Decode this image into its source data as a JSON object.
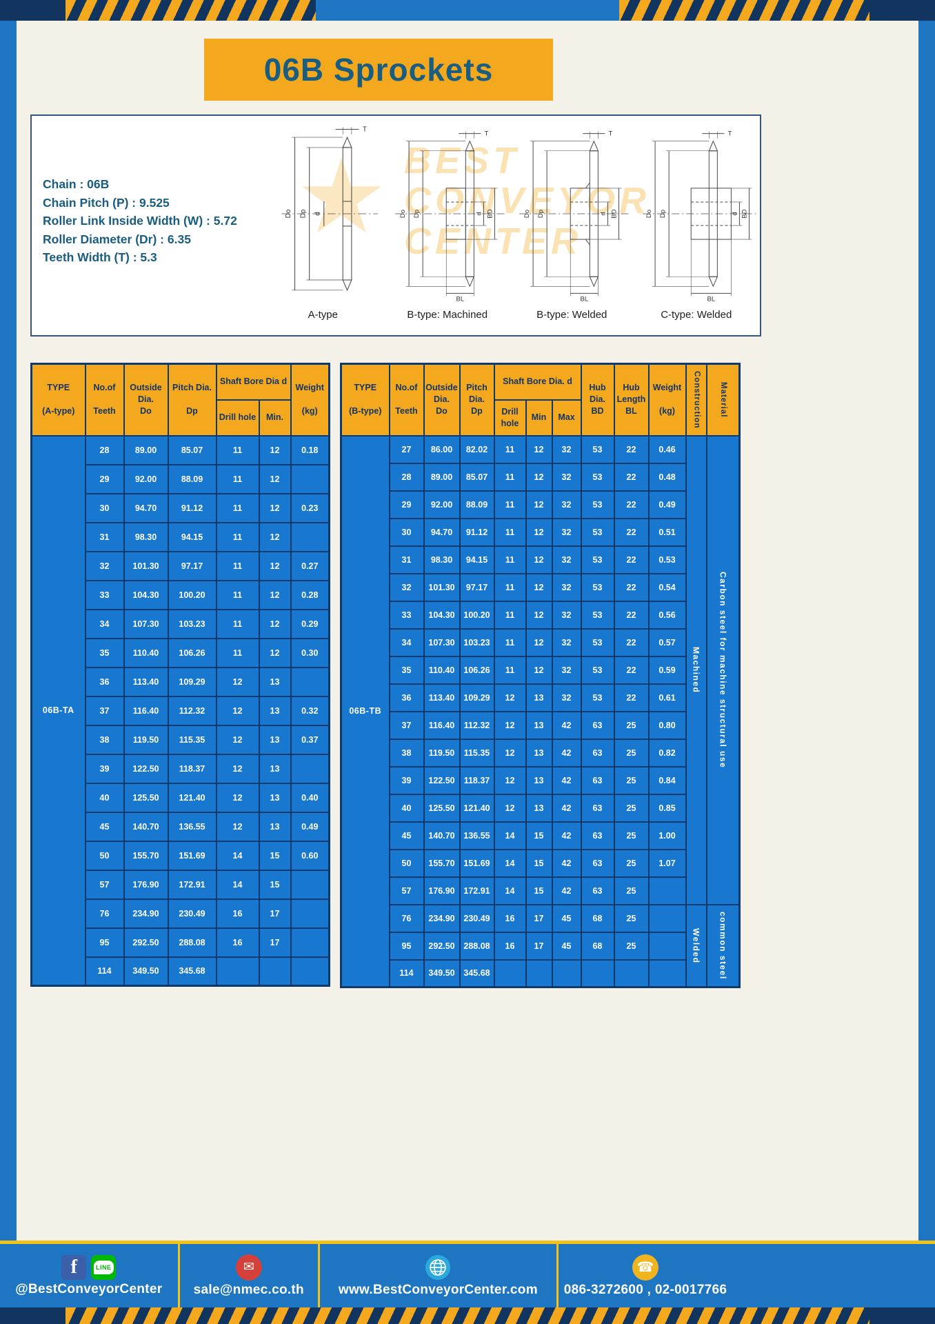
{
  "colors": {
    "blue": "#1e76c2",
    "cream": "#f4f1e9",
    "yellow": "#f3a81d",
    "navy": "#11355f",
    "border_navy": "#0d3a6e",
    "table_blue": "#1878cf",
    "header_text": "#13356b",
    "title_text": "#195d81",
    "footer_yellow": "#f3c318"
  },
  "title": "06B Sprockets",
  "specs": {
    "lines": [
      "Chain : 06B",
      "Chain Pitch (P) : 9.525",
      "Roller Link Inside Width (W) : 5.72",
      "Roller Diameter (Dr) : 6.35",
      "Teeth Width (T) : 5.3"
    ],
    "diagram_labels": [
      "A-type",
      "B-type: Machined",
      "B-type: Welded",
      "C-type: Welded"
    ],
    "watermark_lines": [
      "BEST",
      "CONVEYOR",
      "CENTER"
    ]
  },
  "dims": {
    "T": "T",
    "Do": "Do",
    "Dp": "Dp",
    "d": "d",
    "BD": "BD",
    "BL": "BL"
  },
  "table_a": {
    "type_label": "06B-TA",
    "headers": {
      "type": "TYPE\n\n(A-type)",
      "teeth": "No.of\n\nTeeth",
      "outside": "Outside\nDia.\nDo",
      "pitch": "Pitch Dia.\n\nDp",
      "shaft_group": "Shaft Bore Dia d",
      "drill": "Drill hole",
      "min": "Min.",
      "weight": "Weight\n\n(kg)"
    },
    "rows": [
      [
        "28",
        "89.00",
        "85.07",
        "11",
        "12",
        "0.18"
      ],
      [
        "29",
        "92.00",
        "88.09",
        "11",
        "12",
        ""
      ],
      [
        "30",
        "94.70",
        "91.12",
        "11",
        "12",
        "0.23"
      ],
      [
        "31",
        "98.30",
        "94.15",
        "11",
        "12",
        ""
      ],
      [
        "32",
        "101.30",
        "97.17",
        "11",
        "12",
        "0.27"
      ],
      [
        "33",
        "104.30",
        "100.20",
        "11",
        "12",
        "0.28"
      ],
      [
        "34",
        "107.30",
        "103.23",
        "11",
        "12",
        "0.29"
      ],
      [
        "35",
        "110.40",
        "106.26",
        "11",
        "12",
        "0.30"
      ],
      [
        "36",
        "113.40",
        "109.29",
        "12",
        "13",
        ""
      ],
      [
        "37",
        "116.40",
        "112.32",
        "12",
        "13",
        "0.32"
      ],
      [
        "38",
        "119.50",
        "115.35",
        "12",
        "13",
        "0.37"
      ],
      [
        "39",
        "122.50",
        "118.37",
        "12",
        "13",
        ""
      ],
      [
        "40",
        "125.50",
        "121.40",
        "12",
        "13",
        "0.40"
      ],
      [
        "45",
        "140.70",
        "136.55",
        "12",
        "13",
        "0.49"
      ],
      [
        "50",
        "155.70",
        "151.69",
        "14",
        "15",
        "0.60"
      ],
      [
        "57",
        "176.90",
        "172.91",
        "14",
        "15",
        ""
      ],
      [
        "76",
        "234.90",
        "230.49",
        "16",
        "17",
        ""
      ],
      [
        "95",
        "292.50",
        "288.08",
        "16",
        "17",
        ""
      ],
      [
        "114",
        "349.50",
        "345.68",
        "",
        "",
        ""
      ]
    ]
  },
  "table_b": {
    "type_label": "06B-TB",
    "headers": {
      "type": "TYPE\n\n(B-type)",
      "teeth": "No.of\n\nTeeth",
      "outside": "Outside\nDia.\nDo",
      "pitch": "Pitch\nDia.\nDp",
      "shaft_group": "Shaft Bore Dia. d",
      "drill": "Drill hole",
      "min": "Min",
      "max": "Max",
      "hub_dia": "Hub\nDia.\nBD",
      "hub_len": "Hub\nLength\nBL",
      "weight": "Weight\n\n(kg)",
      "construction": "Construction",
      "material": "Material"
    },
    "rows": [
      [
        "27",
        "86.00",
        "82.02",
        "11",
        "12",
        "32",
        "53",
        "22",
        "0.46"
      ],
      [
        "28",
        "89.00",
        "85.07",
        "11",
        "12",
        "32",
        "53",
        "22",
        "0.48"
      ],
      [
        "29",
        "92.00",
        "88.09",
        "11",
        "12",
        "32",
        "53",
        "22",
        "0.49"
      ],
      [
        "30",
        "94.70",
        "91.12",
        "11",
        "12",
        "32",
        "53",
        "22",
        "0.51"
      ],
      [
        "31",
        "98.30",
        "94.15",
        "11",
        "12",
        "32",
        "53",
        "22",
        "0.53"
      ],
      [
        "32",
        "101.30",
        "97.17",
        "11",
        "12",
        "32",
        "53",
        "22",
        "0.54"
      ],
      [
        "33",
        "104.30",
        "100.20",
        "11",
        "12",
        "32",
        "53",
        "22",
        "0.56"
      ],
      [
        "34",
        "107.30",
        "103.23",
        "11",
        "12",
        "32",
        "53",
        "22",
        "0.57"
      ],
      [
        "35",
        "110.40",
        "106.26",
        "11",
        "12",
        "32",
        "53",
        "22",
        "0.59"
      ],
      [
        "36",
        "113.40",
        "109.29",
        "12",
        "13",
        "32",
        "53",
        "22",
        "0.61"
      ],
      [
        "37",
        "116.40",
        "112.32",
        "12",
        "13",
        "42",
        "63",
        "25",
        "0.80"
      ],
      [
        "38",
        "119.50",
        "115.35",
        "12",
        "13",
        "42",
        "63",
        "25",
        "0.82"
      ],
      [
        "39",
        "122.50",
        "118.37",
        "12",
        "13",
        "42",
        "63",
        "25",
        "0.84"
      ],
      [
        "40",
        "125.50",
        "121.40",
        "12",
        "13",
        "42",
        "63",
        "25",
        "0.85"
      ],
      [
        "45",
        "140.70",
        "136.55",
        "14",
        "15",
        "42",
        "63",
        "25",
        "1.00"
      ],
      [
        "50",
        "155.70",
        "151.69",
        "14",
        "15",
        "42",
        "63",
        "25",
        "1.07"
      ],
      [
        "57",
        "176.90",
        "172.91",
        "14",
        "15",
        "42",
        "63",
        "25",
        ""
      ],
      [
        "76",
        "234.90",
        "230.49",
        "16",
        "17",
        "45",
        "68",
        "25",
        ""
      ],
      [
        "95",
        "292.50",
        "288.08",
        "16",
        "17",
        "45",
        "68",
        "25",
        ""
      ],
      [
        "114",
        "349.50",
        "345.68",
        "",
        "",
        "",
        "",
        "",
        ""
      ]
    ],
    "construction": [
      {
        "label": "Machined",
        "span": 17
      },
      {
        "label": "Welded",
        "span": 3
      }
    ],
    "material": [
      {
        "label": "Carbon steel for machine structural use",
        "span": 17
      },
      {
        "label": "common steel",
        "span": 3
      }
    ]
  },
  "footer": {
    "social": "@BestConveyorCenter",
    "email": "sale@nmec.co.th",
    "website": "www.BestConveyorCenter.com",
    "phone": "086-3272600 , 02-0017766",
    "icons": {
      "facebook": "f",
      "line": "LINE",
      "mail": "✉",
      "phone": "☎",
      "star": "★"
    }
  }
}
